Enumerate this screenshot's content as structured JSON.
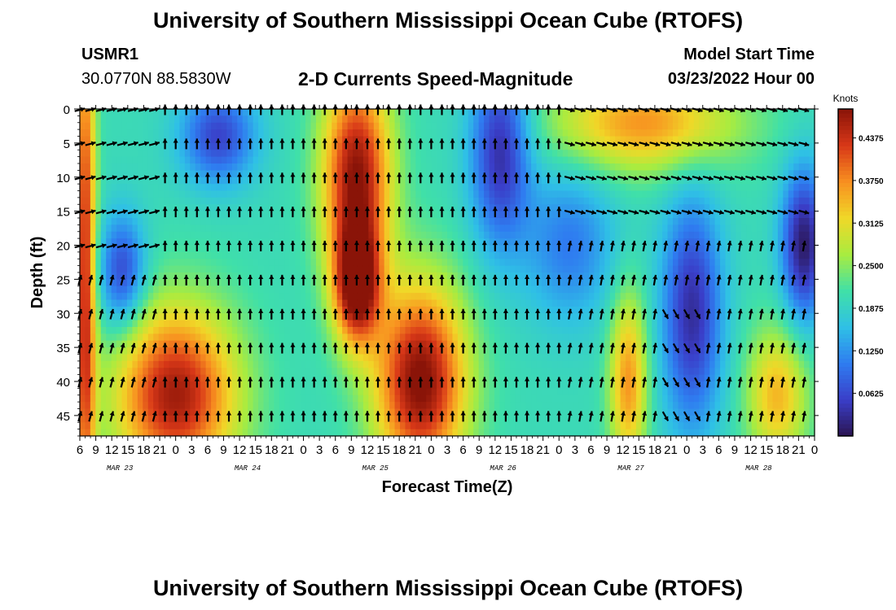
{
  "page": {
    "title": "University of Southern Mississippi Ocean Cube (RTOFS)",
    "title_repeat": "University of Southern Mississippi Ocean Cube (RTOFS)",
    "station": "USMR1",
    "location": "30.0770N  88.5830W",
    "subtitle": "2-D Currents Speed-Magnitude",
    "model_start_label": "Model Start Time",
    "model_start_value": "03/23/2022 Hour 00"
  },
  "chart_data": {
    "type": "heatmap",
    "title": "2-D Currents Speed-Magnitude",
    "xlabel": "Forecast Time(Z)",
    "ylabel": "Depth (ft)",
    "x_range_hours": [
      6,
      144
    ],
    "y_range_ft": [
      0,
      48
    ],
    "x_ticks": [
      {
        "hour": 6,
        "label": "6"
      },
      {
        "hour": 9,
        "label": "9"
      },
      {
        "hour": 12,
        "label": "12"
      },
      {
        "hour": 15,
        "label": "15"
      },
      {
        "hour": 18,
        "label": "18"
      },
      {
        "hour": 21,
        "label": "21"
      },
      {
        "hour": 24,
        "label": "0"
      },
      {
        "hour": 27,
        "label": "3"
      },
      {
        "hour": 30,
        "label": "6"
      },
      {
        "hour": 33,
        "label": "9"
      },
      {
        "hour": 36,
        "label": "12"
      },
      {
        "hour": 39,
        "label": "15"
      },
      {
        "hour": 42,
        "label": "18"
      },
      {
        "hour": 45,
        "label": "21"
      },
      {
        "hour": 48,
        "label": "0"
      },
      {
        "hour": 51,
        "label": "3"
      },
      {
        "hour": 54,
        "label": "6"
      },
      {
        "hour": 57,
        "label": "9"
      },
      {
        "hour": 60,
        "label": "12"
      },
      {
        "hour": 63,
        "label": "15"
      },
      {
        "hour": 66,
        "label": "18"
      },
      {
        "hour": 69,
        "label": "21"
      },
      {
        "hour": 72,
        "label": "0"
      },
      {
        "hour": 75,
        "label": "3"
      },
      {
        "hour": 78,
        "label": "6"
      },
      {
        "hour": 81,
        "label": "9"
      },
      {
        "hour": 84,
        "label": "12"
      },
      {
        "hour": 87,
        "label": "15"
      },
      {
        "hour": 90,
        "label": "18"
      },
      {
        "hour": 93,
        "label": "21"
      },
      {
        "hour": 96,
        "label": "0"
      },
      {
        "hour": 99,
        "label": "3"
      },
      {
        "hour": 102,
        "label": "6"
      },
      {
        "hour": 105,
        "label": "9"
      },
      {
        "hour": 108,
        "label": "12"
      },
      {
        "hour": 111,
        "label": "15"
      },
      {
        "hour": 114,
        "label": "18"
      },
      {
        "hour": 117,
        "label": "21"
      },
      {
        "hour": 120,
        "label": "0"
      },
      {
        "hour": 123,
        "label": "3"
      },
      {
        "hour": 126,
        "label": "6"
      },
      {
        "hour": 129,
        "label": "9"
      },
      {
        "hour": 132,
        "label": "12"
      },
      {
        "hour": 135,
        "label": "15"
      },
      {
        "hour": 138,
        "label": "18"
      },
      {
        "hour": 141,
        "label": "21"
      },
      {
        "hour": 144,
        "label": "0"
      }
    ],
    "date_labels": [
      {
        "hour": 13.5,
        "label": "MAR 23"
      },
      {
        "hour": 37.5,
        "label": "MAR 24"
      },
      {
        "hour": 61.5,
        "label": "MAR 25"
      },
      {
        "hour": 85.5,
        "label": "MAR 26"
      },
      {
        "hour": 109.5,
        "label": "MAR 27"
      },
      {
        "hour": 133.5,
        "label": "MAR 28"
      }
    ],
    "y_ticks": [
      0,
      5,
      10,
      15,
      20,
      25,
      30,
      35,
      40,
      45
    ],
    "colorbar": {
      "title": "Knots",
      "range": [
        0.0,
        0.48
      ],
      "ticks": [
        {
          "value": 0.0625,
          "label": "0.0625"
        },
        {
          "value": 0.125,
          "label": "0.1250"
        },
        {
          "value": 0.1875,
          "label": "0.1875"
        },
        {
          "value": 0.25,
          "label": "0.2500"
        },
        {
          "value": 0.3125,
          "label": "0.3125"
        },
        {
          "value": 0.375,
          "label": "0.3750"
        },
        {
          "value": 0.4375,
          "label": "0.4375"
        }
      ],
      "colors": [
        "#2a1450",
        "#3a3ec8",
        "#2f7cf0",
        "#2fc0e6",
        "#40e0a8",
        "#a8ec40",
        "#f0d828",
        "#f89020",
        "#d83818",
        "#8a1408"
      ]
    },
    "vector_depths_ft": [
      0,
      5,
      10,
      15,
      20,
      25,
      30,
      35,
      40,
      45
    ],
    "vector_interval_hours": 2
  }
}
